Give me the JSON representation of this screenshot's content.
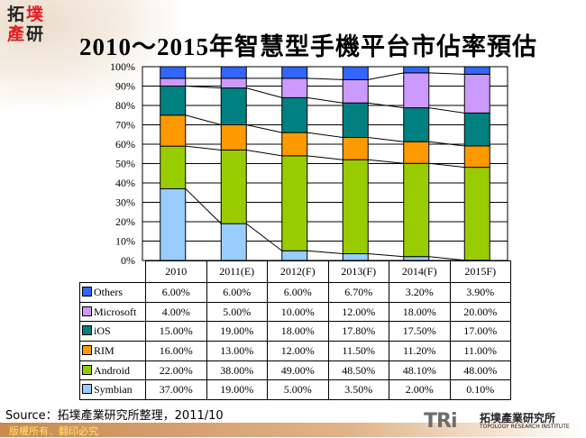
{
  "logo": {
    "chars": [
      "拓",
      "墣",
      "產",
      "研"
    ]
  },
  "title": "2010～2015年智慧型手機平台市佔率預估",
  "chart_data": {
    "type": "bar",
    "stacked": true,
    "percent_stacked": true,
    "title": "2010～2015年智慧型手機平台市佔率預估",
    "categories": [
      "2010",
      "2011(E)",
      "2012(F)",
      "2013(F)",
      "2014(F)",
      "2015F)"
    ],
    "ylim": [
      0,
      100
    ],
    "yticks": [
      "0%",
      "10%",
      "20%",
      "30%",
      "40%",
      "50%",
      "60%",
      "70%",
      "80%",
      "90%",
      "100%"
    ],
    "grid": true,
    "series_connector_lines": true,
    "legend": "data-table",
    "series": [
      {
        "name": "Symbian",
        "color": "#99ccff",
        "values": [
          37,
          19,
          5,
          3.5,
          2,
          0.1
        ],
        "labels": [
          "37.00%",
          "19.00%",
          "5.00%",
          "3.50%",
          "2.00%",
          "0.10%"
        ]
      },
      {
        "name": "Android",
        "color": "#99cc00",
        "values": [
          22,
          38,
          49,
          48.5,
          48.1,
          48
        ],
        "labels": [
          "22.00%",
          "38.00%",
          "49.00%",
          "48.50%",
          "48.10%",
          "48.00%"
        ]
      },
      {
        "name": "RIM",
        "color": "#ff9900",
        "values": [
          16,
          13,
          12,
          11.5,
          11.2,
          11
        ],
        "labels": [
          "16.00%",
          "13.00%",
          "12.00%",
          "11.50%",
          "11.20%",
          "11.00%"
        ]
      },
      {
        "name": "iOS",
        "color": "#008080",
        "values": [
          15,
          19,
          18,
          17.8,
          17.5,
          17
        ],
        "labels": [
          "15.00%",
          "19.00%",
          "18.00%",
          "17.80%",
          "17.50%",
          "17.00%"
        ]
      },
      {
        "name": "Microsoft",
        "color": "#cc99ff",
        "values": [
          4,
          5,
          10,
          12,
          18,
          20
        ],
        "labels": [
          "4.00%",
          "5.00%",
          "10.00%",
          "12.00%",
          "18.00%",
          "20.00%"
        ]
      },
      {
        "name": "Others",
        "color": "#3366ff",
        "values": [
          6,
          6,
          6,
          6.7,
          3.2,
          3.9
        ],
        "labels": [
          "6.00%",
          "6.00%",
          "6.00%",
          "6.70%",
          "3.20%",
          "3.90%"
        ]
      }
    ]
  },
  "source": "Source：拓墣產業研究所整理，2011/10",
  "footer": {
    "copyright": "版權所有．翻印必究"
  },
  "brand": {
    "mark": "TRi",
    "name_zh": "拓墣產業研究所",
    "name_en": "TOPOLOGY RESEARCH INSTITUTE"
  }
}
